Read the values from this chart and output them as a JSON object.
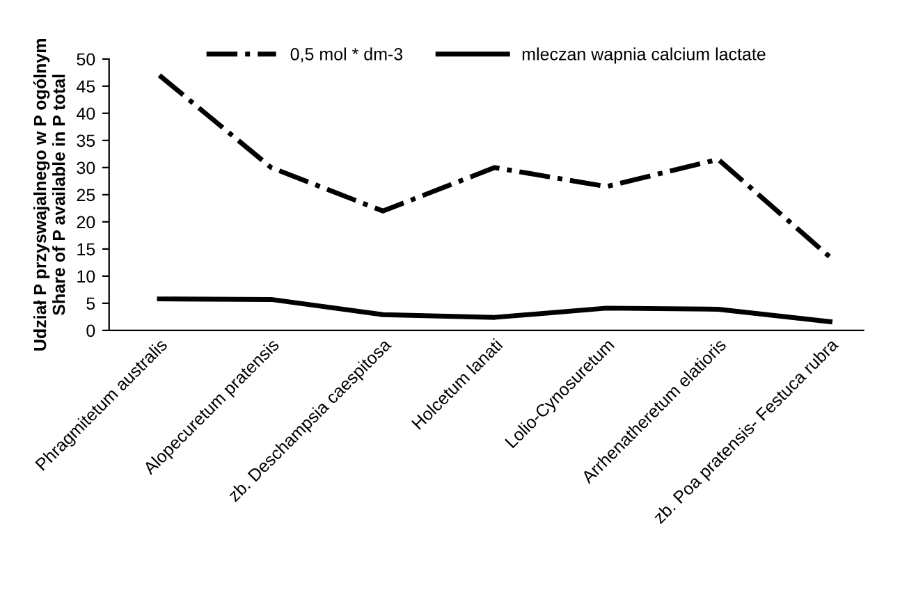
{
  "chart_data": {
    "type": "line",
    "ylabel": "Udział P przyswajalnego w P ogólnym\nShare of P available in P total",
    "categories": [
      "Phragmitetum australis",
      "Alopecuretum pratensis",
      "zb. Deschampsia caespitosa",
      "Holcetum lanati",
      "Lolio-Cynosuretum",
      "Arrhenatheretum elatioris",
      "zb. Poa pratensis- Festuca rubra"
    ],
    "series": [
      {
        "name": "0,5 mol * dm-3",
        "color": "#000000",
        "line_style": "dashdot",
        "values": [
          47,
          30,
          22,
          30,
          26.5,
          31.5,
          13.5
        ]
      },
      {
        "name": "mleczan wapnia calcium lactate",
        "color": "#000000",
        "line_style": "solid",
        "values": [
          5.8,
          5.7,
          2.9,
          2.4,
          4.1,
          3.9,
          1.6
        ]
      }
    ],
    "ylim": [
      0,
      50
    ],
    "yticks": [
      0,
      5,
      10,
      15,
      20,
      25,
      30,
      35,
      40,
      45,
      50
    ],
    "grid": false,
    "legend": "top",
    "marker": "none"
  }
}
